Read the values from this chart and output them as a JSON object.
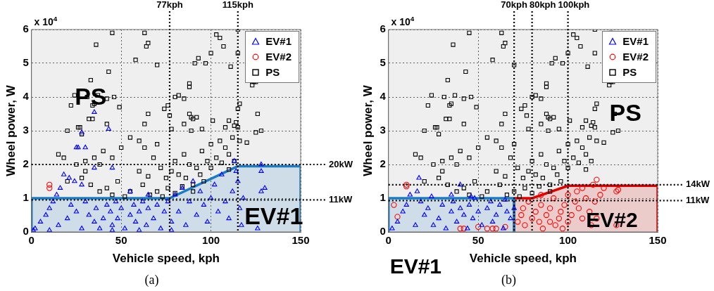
{
  "chart_data": [
    {
      "type": "scatter",
      "title": "(a)",
      "xlabel": "Vehicle speed, kph",
      "ylabel": "Wheel power, W",
      "xlim": [
        0,
        150
      ],
      "xticks": [
        0,
        50,
        100,
        150
      ],
      "ylim": [
        0,
        6
      ],
      "yticks": [
        0,
        1,
        2,
        3,
        4,
        5,
        6
      ],
      "grid": true,
      "legend": "top right",
      "annotations": [
        "x 10$^{4}$",
        "PS",
        "EV#1"
      ],
      "ref_lines": [
        {
          "axis": "x",
          "value": 77,
          "label": "77kph",
          "line_style": "dotted",
          "color": "#000000"
        },
        {
          "axis": "x",
          "value": 115,
          "label": "115kph",
          "line_style": "dotted",
          "color": "#000000"
        },
        {
          "axis": "y",
          "value": 2,
          "label": "20kW",
          "line_style": "dotted",
          "color": "#000000"
        },
        {
          "axis": "y",
          "value": 0.95,
          "label": "11kW",
          "line_style": "dotted",
          "color": "#000000"
        }
      ],
      "series": [
        {
          "name": "EV#1",
          "color": "#0000ff",
          "marker": "triangle",
          "x": [
            2,
            5,
            8,
            10,
            12,
            14,
            16,
            15,
            20,
            22,
            25,
            28,
            30,
            32,
            35,
            36,
            38,
            40,
            42,
            44,
            45,
            47,
            48,
            50,
            52,
            55,
            57,
            58,
            60,
            62,
            64,
            65,
            68,
            70,
            72,
            74,
            76,
            78,
            80,
            82,
            84,
            86,
            88,
            90,
            92,
            94,
            96,
            98,
            100,
            102,
            104,
            106,
            108,
            110,
            112,
            114,
            116,
            118,
            115,
            117,
            128,
            128,
            130,
            128,
            126,
            26,
            25,
            18,
            21,
            24,
            28,
            35,
            45,
            55,
            65,
            43,
            35,
            28,
            30,
            113,
            1,
            10,
            45,
            60,
            78
          ],
          "values": [
            0.1,
            0.3,
            0.5,
            0.7,
            0.9,
            1.1,
            1.3,
            0.2,
            0.4,
            0.8,
            0.6,
            0.1,
            0.9,
            0.5,
            0.3,
            0.7,
            0.1,
            0.4,
            0.8,
            0.6,
            0.2,
            0.9,
            0.4,
            0.7,
            0.1,
            0.5,
            0.8,
            0.3,
            0.6,
            0.9,
            0.2,
            0.7,
            0.4,
            0.8,
            0.1,
            0.6,
            0.9,
            0.3,
            1.1,
            0.6,
            1.3,
            0.2,
            0.9,
            1.5,
            0.5,
            1.2,
            0.8,
            0.3,
            1,
            1.4,
            0.6,
            1.7,
            0.9,
            0.4,
            1.2,
            1.8,
            0.7,
            1,
            1.5,
            0.2,
            2,
            1.8,
            1.3,
            1.2,
            0.1,
            2.5,
            2.5,
            1.7,
            1.6,
            1.5,
            1.4,
            1.9,
            1.9,
            1.2,
            1.1,
            3.05,
            3.55,
            2.95,
            2.5,
            2.1,
            0.05,
            0.05,
            0.05,
            0.05,
            0.05
          ]
        },
        {
          "name": "EV#2",
          "color": "#ff0000",
          "marker": "circle",
          "x": [
            10,
            10
          ],
          "values": [
            1.4,
            1.3
          ]
        },
        {
          "name": "PS",
          "color": "#000000",
          "marker": "square",
          "x": [
            45,
            36,
            43,
            33,
            24,
            31,
            37,
            42,
            46,
            22,
            34,
            35,
            49,
            32,
            34,
            42,
            20,
            26,
            27,
            28,
            63,
            64,
            65,
            58,
            70,
            63,
            65,
            76,
            74,
            77,
            78,
            80,
            82,
            85,
            88,
            88,
            88,
            89,
            90,
            92,
            85,
            89,
            95,
            91,
            93,
            97,
            100,
            103,
            105,
            107,
            111,
            115,
            115,
            124,
            124,
            123,
            125,
            116,
            115,
            110,
            113,
            114,
            115,
            126,
            128,
            101,
            108,
            15,
            18,
            25,
            30,
            35,
            38,
            40,
            45,
            50,
            55,
            60,
            63,
            68,
            70,
            72,
            75,
            78,
            80,
            82,
            85,
            88,
            90,
            92,
            95,
            98,
            100,
            103,
            105,
            108,
            110,
            112,
            113,
            116,
            120,
            125,
            20,
            28,
            33,
            42,
            48,
            55,
            62,
            66,
            70,
            73,
            76,
            80,
            84,
            86,
            90,
            94,
            96,
            52,
            45,
            38,
            30,
            60,
            65,
            100,
            106,
            110
          ],
          "values": [
            5.9,
            5.55,
            4.75,
            4.5,
            4.05,
            4,
            4.05,
            3.95,
            4,
            3.75,
            3.75,
            3.8,
            3.7,
            3.35,
            3.35,
            3.2,
            3,
            3.1,
            3.1,
            2.9,
            5.9,
            5.5,
            5.6,
            5.1,
            4.95,
            3.2,
            3.5,
            3.75,
            3.65,
            3.45,
            3.05,
            4,
            4.05,
            3.95,
            4.4,
            4.3,
            3.5,
            3.4,
            3.35,
            3.4,
            3.2,
            3,
            3.05,
            5,
            5.15,
            5,
            5.3,
            5.85,
            5.75,
            5.5,
            4.9,
            6,
            5.3,
            5.9,
            4.45,
            4.35,
            4.45,
            3.8,
            3.65,
            3.3,
            3.15,
            3.25,
            3.1,
            3.5,
            3,
            3.3,
            3.1,
            2.3,
            2.2,
            2,
            2.1,
            2.2,
            2,
            2.4,
            2.2,
            2.5,
            2.8,
            2.7,
            2.5,
            2.2,
            2.6,
            1.9,
            1.6,
            1.8,
            2.1,
            1.7,
            2.3,
            2,
            1.4,
            1.9,
            2.4,
            2.1,
            2.6,
            2.2,
            2.7,
            2.5,
            2.3,
            2.8,
            2.1,
            2.7,
            2.65,
            2.95,
            1.5,
            1.6,
            1.4,
            1.3,
            1.5,
            1.2,
            1.4,
            1.1,
            1.2,
            1.05,
            1.3,
            1.15,
            1.35,
            1.6,
            1.2,
            1.7,
            1.5,
            1.05,
            1.1,
            1.2,
            1.8,
            1.8,
            1.65,
            1.9,
            2.05,
            1.85
          ]
        },
        {
          "type": "area",
          "color": "#1a7cc4",
          "x": [
            0,
            0,
            77,
            115,
            150,
            150
          ],
          "values": [
            0,
            1,
            1,
            1.95,
            1.95,
            0
          ]
        }
      ]
    },
    {
      "type": "scatter",
      "title": "(b)",
      "xlabel": "Vehicle speed, kph",
      "ylabel": "Wheel power, W",
      "xlim": [
        0,
        150
      ],
      "xticks": [
        0,
        50,
        100,
        150
      ],
      "ylim": [
        0,
        6
      ],
      "yticks": [
        0,
        1,
        2,
        3,
        4,
        5,
        6
      ],
      "grid": true,
      "legend": "top right",
      "annotations": [
        "x 10$^{4}$",
        "EV#1",
        "PS",
        "EV#2"
      ],
      "ref_lines": [
        {
          "axis": "x",
          "value": 70,
          "label": "70kph",
          "line_style": "dotted",
          "color": "#000000"
        },
        {
          "axis": "x",
          "value": 80,
          "label": "80kph",
          "line_style": "dotted",
          "color": "#000000"
        },
        {
          "axis": "x",
          "value": 100,
          "label": "100kph",
          "line_style": "dotted",
          "color": "#000000"
        },
        {
          "axis": "y",
          "value": 1.4,
          "label": "14kW",
          "line_style": "dotted",
          "color": "#000000"
        },
        {
          "axis": "y",
          "value": 0.93,
          "label": "11kW",
          "line_style": "dotted",
          "color": "#000000"
        }
      ],
      "series": [
        {
          "name": "EV#1",
          "color": "#0000ff",
          "marker": "triangle",
          "x": [
            2,
            5,
            8,
            10,
            12,
            15,
            16,
            18,
            20,
            22,
            25,
            28,
            30,
            32,
            35,
            36,
            38,
            40,
            42,
            44,
            45,
            47,
            48,
            50,
            52,
            55,
            57,
            58,
            60,
            62,
            64,
            65,
            66,
            68,
            70,
            17,
            40,
            46,
            24,
            35
          ],
          "values": [
            0.1,
            0.3,
            0.6,
            0.8,
            1.1,
            0.2,
            1.2,
            0.9,
            0.5,
            0.7,
            0.2,
            0.4,
            0.8,
            0.1,
            0.6,
            0.9,
            0.3,
            0.7,
            0.5,
            0.1,
            0.8,
            0.4,
            1,
            0.6,
            0.2,
            0.7,
            0.9,
            0.3,
            0.5,
            0.8,
            0.1,
            0.95,
            0.6,
            0.4,
            0.7,
            1.6,
            1.4,
            1.05,
            1.05,
            1.1
          ]
        },
        {
          "name": "EV#2",
          "color": "#ff0000",
          "marker": "circle",
          "x": [
            10,
            10,
            3,
            5,
            40,
            42,
            50,
            55,
            58,
            60,
            65,
            72,
            74,
            75,
            76,
            78,
            80,
            82,
            84,
            85,
            86,
            88,
            90,
            92,
            93,
            95,
            96,
            98,
            100,
            100,
            102,
            104,
            105,
            106,
            108,
            108,
            110,
            112,
            113,
            114,
            115,
            116,
            116,
            118,
            120,
            127,
            128,
            127,
            85,
            90,
            97
          ],
          "values": [
            1.4,
            1.35,
            0.8,
            0.45,
            0.1,
            0.1,
            0.15,
            0.1,
            0.1,
            0.1,
            0.15,
            0.3,
            0.5,
            0.7,
            0.2,
            0.9,
            0.4,
            0.6,
            0.3,
            0.8,
            0.1,
            0.5,
            0.7,
            1,
            0.2,
            0.4,
            0.6,
            0.8,
            1.1,
            0.3,
            0.5,
            0.9,
            1.2,
            0.7,
            0.4,
            1.3,
            1,
            0.6,
            0.2,
            1.4,
            0.9,
            1.55,
            0.4,
            1.1,
            1.3,
            1.2,
            1.25,
            0.2,
            1.1,
            0.3,
            0.1
          ]
        },
        {
          "name": "PS",
          "color": "#000000",
          "marker": "square",
          "x": [
            45,
            36,
            43,
            33,
            24,
            31,
            37,
            42,
            46,
            22,
            34,
            35,
            49,
            32,
            34,
            42,
            20,
            26,
            27,
            28,
            63,
            64,
            65,
            58,
            70,
            63,
            65,
            76,
            74,
            77,
            78,
            80,
            82,
            85,
            88,
            88,
            88,
            89,
            90,
            92,
            85,
            89,
            95,
            91,
            93,
            97,
            100,
            103,
            105,
            107,
            111,
            115,
            115,
            124,
            124,
            123,
            125,
            116,
            115,
            110,
            113,
            114,
            115,
            126,
            128,
            101,
            108,
            15,
            18,
            25,
            30,
            35,
            38,
            40,
            45,
            50,
            55,
            60,
            63,
            68,
            70,
            72,
            75,
            78,
            80,
            82,
            85,
            88,
            90,
            92,
            95,
            98,
            100,
            103,
            105,
            108,
            110,
            112,
            113,
            116,
            120,
            125,
            20,
            28,
            33,
            42,
            48,
            55,
            62,
            66,
            70,
            73,
            76,
            80,
            84,
            86,
            90,
            94,
            96,
            52,
            45,
            38,
            30,
            60,
            65,
            100,
            106,
            110
          ],
          "values": [
            5.9,
            5.55,
            4.75,
            4.5,
            4.05,
            4,
            4.05,
            3.95,
            4,
            3.75,
            3.75,
            3.8,
            3.7,
            3.35,
            3.35,
            3.2,
            3,
            3.1,
            3.1,
            2.9,
            5.9,
            5.5,
            5.6,
            5.1,
            4.95,
            3.2,
            3.5,
            3.75,
            3.65,
            3.45,
            3.05,
            4,
            4.05,
            3.95,
            4.4,
            4.3,
            3.5,
            3.4,
            3.35,
            3.4,
            3.2,
            3,
            3.05,
            5,
            5.15,
            5,
            5.3,
            5.85,
            5.75,
            5.5,
            4.9,
            6,
            5.3,
            5.9,
            4.45,
            4.35,
            4.45,
            3.8,
            3.65,
            3.3,
            3.15,
            3.25,
            3.1,
            3.5,
            3,
            3.3,
            3.1,
            2.3,
            2.2,
            2,
            2.1,
            2.2,
            2,
            2.4,
            2.2,
            2.5,
            2.8,
            2.7,
            2.5,
            2.2,
            2.6,
            1.9,
            1.6,
            1.8,
            2.1,
            1.7,
            2.3,
            2,
            1.4,
            1.9,
            2.4,
            2.1,
            2.6,
            2.2,
            2.7,
            2.5,
            2.3,
            2.8,
            2.1,
            2.7,
            2.65,
            2.95,
            1.5,
            1.6,
            1.4,
            1.3,
            1.5,
            1.2,
            1.4,
            1.1,
            1.2,
            1.05,
            1.3,
            1.15,
            1.35,
            1.6,
            1.2,
            1.7,
            1.5,
            1.05,
            1.1,
            1.2,
            1.8,
            1.8,
            1.65,
            1.9,
            2.05,
            1.85
          ]
        },
        {
          "type": "area",
          "color": "#1a7cc4",
          "x": [
            0,
            0,
            70,
            70
          ],
          "values": [
            0,
            1,
            1,
            0
          ]
        },
        {
          "type": "area",
          "color": "#e00000",
          "x": [
            70,
            70,
            80,
            100,
            150,
            150
          ],
          "values": [
            0,
            1,
            1,
            1.37,
            1.37,
            0
          ]
        }
      ]
    }
  ]
}
